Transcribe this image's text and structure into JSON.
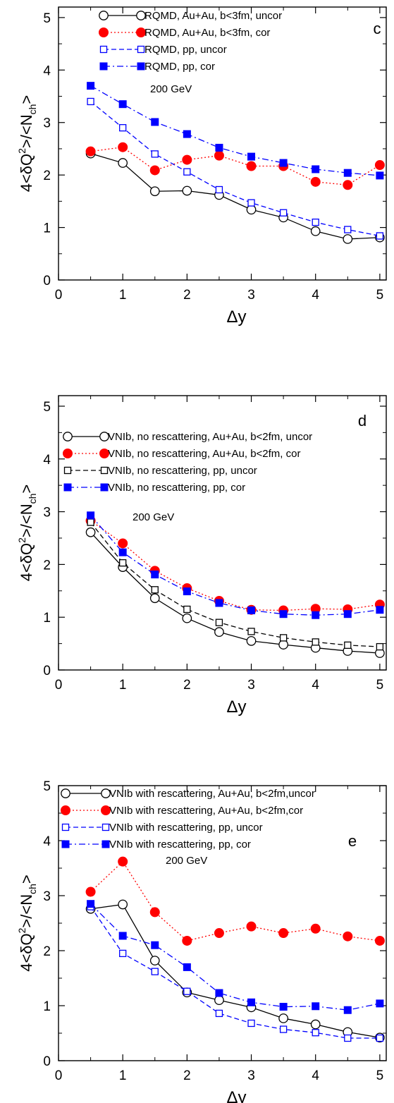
{
  "chart_data": [
    {
      "type": "line",
      "panel_label": "c",
      "annotation": "200 GeV",
      "xlabel": "Δy",
      "ylabel_main": "4<δQ",
      "ylabel_sup": "2",
      "ylabel_mid": ">/<N",
      "ylabel_sub": "ch",
      "ylabel_end": ">",
      "xlim": [
        0,
        5.1
      ],
      "ylim": [
        0,
        5.2
      ],
      "xticks": [
        "0",
        "1",
        "2",
        "3",
        "4",
        "5"
      ],
      "yticks": [
        "0",
        "1",
        "2",
        "3",
        "4",
        "5"
      ],
      "x": [
        0.5,
        1.0,
        1.5,
        2.0,
        2.5,
        3.0,
        3.5,
        4.0,
        4.5,
        5.0
      ],
      "legend_position": "top",
      "series": [
        {
          "name": "RQMD, Au+Au, b<3fm, uncor",
          "color": "#000000",
          "marker": "circle-open",
          "dash": "",
          "values": [
            2.41,
            2.23,
            1.69,
            1.7,
            1.62,
            1.34,
            1.19,
            0.93,
            0.78,
            0.81
          ]
        },
        {
          "name": "RQMD, Au+Au, b<3fm, cor",
          "color": "#ff0000",
          "marker": "circle-filled",
          "dash": "2,3",
          "values": [
            2.45,
            2.53,
            2.09,
            2.29,
            2.37,
            2.17,
            2.17,
            1.87,
            1.81,
            2.19
          ]
        },
        {
          "name": "RQMD, pp, uncor",
          "color": "#0000ff",
          "marker": "square-open",
          "dash": "7,4",
          "values": [
            3.4,
            2.9,
            2.4,
            2.06,
            1.72,
            1.47,
            1.28,
            1.1,
            0.96,
            0.84
          ]
        },
        {
          "name": "RQMD, pp, cor",
          "color": "#0000ff",
          "marker": "square-filled",
          "dash": "9,4,2,4",
          "values": [
            3.7,
            3.35,
            3.01,
            2.78,
            2.52,
            2.35,
            2.23,
            2.11,
            2.04,
            1.99
          ]
        }
      ]
    },
    {
      "type": "line",
      "panel_label": "d",
      "annotation": "200 GeV",
      "xlabel": "Δy",
      "ylabel_main": "4<δQ",
      "ylabel_sup": "2",
      "ylabel_mid": ">/<N",
      "ylabel_sub": "ch",
      "ylabel_end": ">",
      "xlim": [
        0,
        5.1
      ],
      "ylim": [
        0,
        5.2
      ],
      "xticks": [
        "0",
        "1",
        "2",
        "3",
        "4",
        "5"
      ],
      "yticks": [
        "0",
        "1",
        "2",
        "3",
        "4",
        "5"
      ],
      "x": [
        0.5,
        1.0,
        1.5,
        2.0,
        2.5,
        3.0,
        3.5,
        4.0,
        4.5,
        5.0
      ],
      "legend_position": "top",
      "series": [
        {
          "name": "VNIb, no rescattering, Au+Au, b<2fm, uncor",
          "color": "#000000",
          "marker": "circle-open",
          "dash": "",
          "values": [
            2.61,
            1.95,
            1.36,
            0.98,
            0.72,
            0.55,
            0.48,
            0.42,
            0.36,
            0.32
          ]
        },
        {
          "name": "VNIb, no rescattering, Au+Au, b<2fm, cor",
          "color": "#ff0000",
          "marker": "circle-filled",
          "dash": "2,3",
          "values": [
            2.83,
            2.4,
            1.88,
            1.55,
            1.31,
            1.14,
            1.13,
            1.16,
            1.15,
            1.24
          ]
        },
        {
          "name": "VNIb, no rescattering, pp, uncor",
          "color": "#000000",
          "marker": "square-open",
          "dash": "7,4",
          "values": [
            2.8,
            2.03,
            1.52,
            1.15,
            0.9,
            0.73,
            0.61,
            0.53,
            0.47,
            0.44
          ]
        },
        {
          "name": "VNIb, no rescattering, pp, cor",
          "color": "#0000ff",
          "marker": "square-filled",
          "dash": "9,4,2,4",
          "values": [
            2.93,
            2.23,
            1.81,
            1.49,
            1.27,
            1.13,
            1.06,
            1.04,
            1.06,
            1.14
          ]
        }
      ]
    },
    {
      "type": "line",
      "panel_label": "e",
      "annotation": "200 GeV",
      "xlabel": "Δy",
      "ylabel_main": "4<δQ",
      "ylabel_sup": "2",
      "ylabel_mid": ">/<N",
      "ylabel_sub": "ch",
      "ylabel_end": ">",
      "xlim": [
        0,
        5.1
      ],
      "ylim": [
        0,
        5.0
      ],
      "xticks": [
        "0",
        "1",
        "2",
        "3",
        "4",
        "5"
      ],
      "yticks": [
        "0",
        "1",
        "2",
        "3",
        "4",
        "5"
      ],
      "x": [
        0.5,
        1.0,
        1.5,
        2.0,
        2.5,
        3.0,
        3.5,
        4.0,
        4.5,
        5.0
      ],
      "legend_position": "top",
      "series": [
        {
          "name": "VNIb with rescattering, Au+Au, b<2fm,uncor",
          "color": "#000000",
          "marker": "circle-open",
          "dash": "",
          "values": [
            2.76,
            2.84,
            1.82,
            1.24,
            1.1,
            0.97,
            0.77,
            0.66,
            0.52,
            0.42
          ]
        },
        {
          "name": "VNIb with rescattering, Au+Au, b<2fm,cor",
          "color": "#ff0000",
          "marker": "circle-filled",
          "dash": "2,3",
          "values": [
            3.07,
            3.62,
            2.7,
            2.18,
            2.32,
            2.44,
            2.32,
            2.4,
            2.26,
            2.18
          ]
        },
        {
          "name": "VNIb with rescattering, pp, uncor",
          "color": "#0000ff",
          "marker": "square-open",
          "dash": "7,4",
          "values": [
            2.8,
            1.95,
            1.62,
            1.26,
            0.86,
            0.68,
            0.57,
            0.51,
            0.41,
            0.41
          ]
        },
        {
          "name": "VNIb with rescattering, pp, cor",
          "color": "#0000ff",
          "marker": "square-filled",
          "dash": "9,4,2,4",
          "values": [
            2.85,
            2.27,
            2.1,
            1.7,
            1.23,
            1.06,
            0.98,
            0.99,
            0.92,
            1.04
          ]
        }
      ]
    }
  ]
}
